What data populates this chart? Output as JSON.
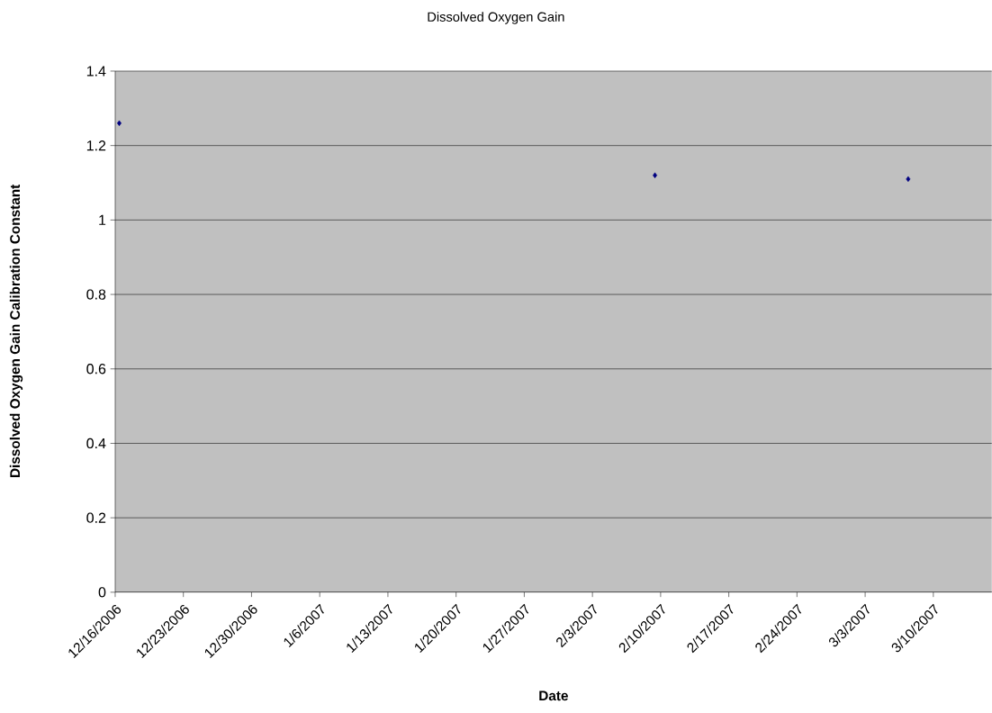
{
  "chart_data": {
    "type": "scatter",
    "title": "Dissolved Oxygen Gain",
    "xlabel": "Date",
    "ylabel": "Dissolved Oxygen Gain Calibration Constant",
    "x": [
      "2006-12-16T10:00",
      "2007-02-09T10:00",
      "2007-03-07T10:00"
    ],
    "series": [
      {
        "color": "#000080",
        "values": [
          1.26,
          1.12,
          1.11
        ]
      }
    ],
    "xlim": [
      "2006-12-16",
      "2007-03-16"
    ],
    "xticks": [
      {
        "value": "2006-12-16",
        "label": "12/16/2006"
      },
      {
        "value": "2006-12-23",
        "label": "12/23/2006"
      },
      {
        "value": "2006-12-30",
        "label": "12/30/2006"
      },
      {
        "value": "2007-01-06",
        "label": "1/6/2007"
      },
      {
        "value": "2007-01-13",
        "label": "1/13/2007"
      },
      {
        "value": "2007-01-20",
        "label": "1/20/2007"
      },
      {
        "value": "2007-01-27",
        "label": "1/27/2007"
      },
      {
        "value": "2007-02-03",
        "label": "2/3/2007"
      },
      {
        "value": "2007-02-10",
        "label": "2/10/2007"
      },
      {
        "value": "2007-02-17",
        "label": "2/17/2007"
      },
      {
        "value": "2007-02-24",
        "label": "2/24/2007"
      },
      {
        "value": "2007-03-03",
        "label": "3/3/2007"
      },
      {
        "value": "2007-03-10",
        "label": "3/10/2007"
      }
    ],
    "ylim": [
      0,
      1.4
    ],
    "yticks": [
      0,
      0.2,
      0.4,
      0.6,
      0.8,
      1,
      1.2,
      1.4
    ],
    "grid": "y",
    "marker": "diamond"
  }
}
